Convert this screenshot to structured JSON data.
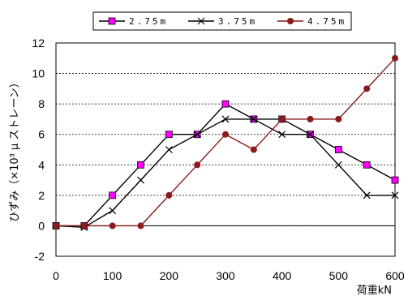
{
  "chart_data": {
    "type": "line",
    "x": [
      0,
      50,
      100,
      150,
      200,
      250,
      300,
      350,
      400,
      450,
      500,
      550,
      600
    ],
    "series": [
      {
        "name": "2.75m",
        "values": [
          0,
          0,
          2,
          4,
          6,
          6,
          8,
          7,
          7,
          6,
          5,
          4,
          3
        ],
        "color": "#000000",
        "marker": "square",
        "marker_color": "#ff00ff"
      },
      {
        "name": "3.75m",
        "values": [
          0,
          -0.1,
          1,
          3,
          5,
          6,
          7,
          7,
          6,
          6,
          4,
          2,
          2
        ],
        "color": "#000000",
        "marker": "x",
        "marker_color": "#000000"
      },
      {
        "name": "4.75m",
        "values": [
          0,
          0,
          0,
          0,
          2,
          4,
          6,
          5,
          7,
          7,
          7,
          9,
          11
        ],
        "color": "#8b1a1a",
        "marker": "circle",
        "marker_color": "#8b1a1a"
      }
    ],
    "legend_labels": [
      "2.75m",
      "3.75m",
      "4.75m"
    ],
    "legend_placement": "top",
    "xlim": [
      0,
      600
    ],
    "ylim": [
      -2,
      12
    ],
    "xticks": [
      0,
      100,
      200,
      300,
      400,
      500,
      600
    ],
    "yticks": [
      -2,
      0,
      2,
      4,
      6,
      8,
      10,
      12
    ],
    "xlabel": "荷重kN",
    "ylabel": "ひずみ（×10³ μ ストレーン）",
    "grid": "horizontal-dashed"
  }
}
